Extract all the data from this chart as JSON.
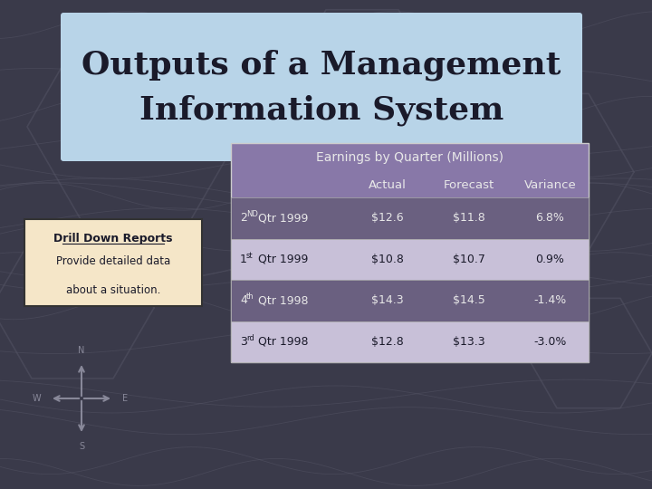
{
  "title_line1": "Outputs of a Management",
  "title_line2": "Information System",
  "title_bg_color": "#b8d4e8",
  "bg_color": "#3a3a4a",
  "table_title": "Earnings by Quarter (Millions)",
  "table_header_bg": "#8878a8",
  "table_header_color": "#e8e8e8",
  "table_row_bg_dark": "#6a6080",
  "table_row_bg_light": "#c8c0d8",
  "table_text_color": "#1a1a2a",
  "col_headers": [
    "",
    "Actual",
    "Forecast",
    "Variance"
  ],
  "rows": [
    {
      "label_sup": "ND",
      "label_base": "2",
      "label_rest": " Qtr 1999",
      "actual": "$12.6",
      "forecast": "$11.8",
      "variance": "6.8%"
    },
    {
      "label_sup": "st",
      "label_base": "1",
      "label_rest": " Qtr 1999",
      "actual": "$10.8",
      "forecast": "$10.7",
      "variance": "0.9%"
    },
    {
      "label_sup": "th",
      "label_base": "4",
      "label_rest": " Qtr 1998",
      "actual": "$14.3",
      "forecast": "$14.5",
      "variance": "-1.4%"
    },
    {
      "label_sup": "rd",
      "label_base": "3",
      "label_rest": " Qtr 1998",
      "actual": "$12.8",
      "forecast": "$13.3",
      "variance": "-3.0%"
    }
  ],
  "drill_box_bg": "#f5e6c8",
  "drill_box_border": "#333333",
  "drill_title": "Drill Down Reports",
  "drill_text1": "Provide detailed data",
  "drill_text2": "about a situation."
}
